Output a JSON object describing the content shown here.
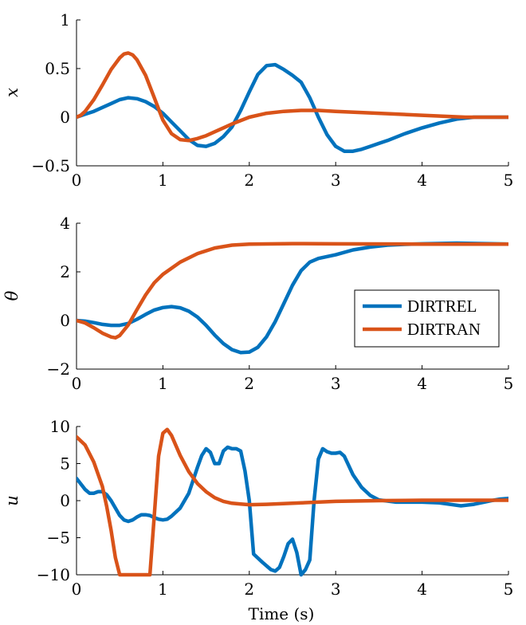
{
  "colors": {
    "DIRTREL": "#0072bd",
    "DIRTRAN": "#d95319"
  },
  "xlabel": "Time (s)",
  "chart_data": [
    {
      "type": "line",
      "ylabel": "x",
      "xlim": [
        0,
        5
      ],
      "ylim": [
        -0.5,
        1
      ],
      "xticks": [
        "0",
        "1",
        "2",
        "3",
        "4",
        "5"
      ],
      "yticks": [
        {
          "value": -0.5,
          "label": "−0.5"
        },
        {
          "value": 0,
          "label": "0"
        },
        {
          "value": 0.5,
          "label": "0.5"
        },
        {
          "value": 1,
          "label": "1"
        }
      ],
      "grid": false,
      "series": [
        {
          "name": "DIRTREL",
          "x": [
            0,
            0.1,
            0.2,
            0.3,
            0.4,
            0.5,
            0.6,
            0.7,
            0.8,
            0.9,
            1.0,
            1.1,
            1.2,
            1.3,
            1.4,
            1.5,
            1.6,
            1.7,
            1.8,
            1.9,
            2.0,
            2.1,
            2.2,
            2.3,
            2.4,
            2.5,
            2.6,
            2.7,
            2.8,
            2.9,
            3.0,
            3.1,
            3.2,
            3.3,
            3.4,
            3.5,
            3.6,
            3.8,
            4.0,
            4.2,
            4.4,
            4.6,
            4.8,
            5.0
          ],
          "y": [
            0,
            0.03,
            0.06,
            0.1,
            0.14,
            0.18,
            0.2,
            0.19,
            0.16,
            0.11,
            0.04,
            -0.05,
            -0.14,
            -0.23,
            -0.29,
            -0.3,
            -0.27,
            -0.2,
            -0.1,
            0.07,
            0.26,
            0.44,
            0.53,
            0.54,
            0.49,
            0.43,
            0.36,
            0.2,
            0.0,
            -0.18,
            -0.3,
            -0.35,
            -0.35,
            -0.33,
            -0.3,
            -0.27,
            -0.24,
            -0.17,
            -0.11,
            -0.06,
            -0.02,
            0.0,
            0.0,
            0.0
          ]
        },
        {
          "name": "DIRTRAN",
          "x": [
            0,
            0.05,
            0.1,
            0.2,
            0.3,
            0.4,
            0.5,
            0.55,
            0.6,
            0.65,
            0.7,
            0.8,
            0.9,
            1.0,
            1.1,
            1.2,
            1.3,
            1.4,
            1.5,
            1.6,
            1.7,
            1.8,
            2.0,
            2.2,
            2.4,
            2.6,
            2.8,
            3.0,
            3.5,
            4.0,
            4.5,
            5.0
          ],
          "y": [
            0,
            0.02,
            0.06,
            0.18,
            0.33,
            0.49,
            0.61,
            0.65,
            0.66,
            0.64,
            0.59,
            0.43,
            0.2,
            -0.03,
            -0.17,
            -0.23,
            -0.24,
            -0.22,
            -0.19,
            -0.15,
            -0.11,
            -0.07,
            0.0,
            0.04,
            0.06,
            0.07,
            0.07,
            0.06,
            0.04,
            0.02,
            0.0,
            0.0
          ]
        }
      ]
    },
    {
      "type": "line",
      "ylabel": "θ",
      "xlim": [
        0,
        5
      ],
      "ylim": [
        -2,
        4
      ],
      "xticks": [
        "0",
        "1",
        "2",
        "3",
        "4",
        "5"
      ],
      "yticks": [
        {
          "value": -2,
          "label": "−2"
        },
        {
          "value": 0,
          "label": "0"
        },
        {
          "value": 2,
          "label": "2"
        },
        {
          "value": 4,
          "label": "4"
        }
      ],
      "grid": false,
      "legend": {
        "placement": "lower-right",
        "entries": [
          "DIRTREL",
          "DIRTRAN"
        ]
      },
      "series": [
        {
          "name": "DIRTREL",
          "x": [
            0,
            0.1,
            0.2,
            0.3,
            0.4,
            0.5,
            0.6,
            0.7,
            0.8,
            0.9,
            1.0,
            1.1,
            1.2,
            1.3,
            1.4,
            1.5,
            1.6,
            1.7,
            1.8,
            1.9,
            2.0,
            2.1,
            2.2,
            2.3,
            2.4,
            2.5,
            2.6,
            2.7,
            2.8,
            3.0,
            3.2,
            3.4,
            3.6,
            3.8,
            4.0,
            4.4,
            5.0
          ],
          "y": [
            0,
            -0.03,
            -0.09,
            -0.16,
            -0.2,
            -0.2,
            -0.12,
            0.05,
            0.25,
            0.43,
            0.53,
            0.57,
            0.52,
            0.38,
            0.14,
            -0.2,
            -0.6,
            -0.95,
            -1.2,
            -1.32,
            -1.3,
            -1.1,
            -0.67,
            -0.05,
            0.7,
            1.45,
            2.05,
            2.4,
            2.55,
            2.7,
            2.9,
            3.02,
            3.1,
            3.13,
            3.15,
            3.18,
            3.14
          ]
        },
        {
          "name": "DIRTRAN",
          "x": [
            0,
            0.1,
            0.2,
            0.3,
            0.4,
            0.45,
            0.5,
            0.6,
            0.7,
            0.8,
            0.9,
            1.0,
            1.2,
            1.4,
            1.6,
            1.8,
            2.0,
            2.5,
            3.0,
            4.0,
            5.0
          ],
          "y": [
            0,
            -0.1,
            -0.3,
            -0.52,
            -0.68,
            -0.71,
            -0.62,
            -0.18,
            0.45,
            1.05,
            1.55,
            1.9,
            2.4,
            2.75,
            2.98,
            3.1,
            3.14,
            3.16,
            3.15,
            3.14,
            3.14
          ]
        }
      ]
    },
    {
      "type": "line",
      "ylabel": "u",
      "xlabel": "Time (s)",
      "xlim": [
        0,
        5
      ],
      "ylim": [
        -10,
        10
      ],
      "xticks": [
        "0",
        "1",
        "2",
        "3",
        "4",
        "5"
      ],
      "yticks": [
        {
          "value": -10,
          "label": "−10"
        },
        {
          "value": -5,
          "label": "−5"
        },
        {
          "value": 0,
          "label": "0"
        },
        {
          "value": 5,
          "label": "5"
        },
        {
          "value": 10,
          "label": "10"
        }
      ],
      "grid": false,
      "series": [
        {
          "name": "DIRTREL",
          "x": [
            0,
            0.1,
            0.15,
            0.2,
            0.25,
            0.3,
            0.35,
            0.4,
            0.5,
            0.55,
            0.6,
            0.65,
            0.7,
            0.75,
            0.8,
            0.85,
            0.9,
            0.95,
            1.0,
            1.05,
            1.1,
            1.2,
            1.3,
            1.4,
            1.45,
            1.5,
            1.55,
            1.6,
            1.65,
            1.7,
            1.75,
            1.8,
            1.85,
            1.9,
            1.95,
            2.0,
            2.05,
            2.15,
            2.25,
            2.3,
            2.35,
            2.4,
            2.45,
            2.5,
            2.55,
            2.6,
            2.65,
            2.7,
            2.75,
            2.8,
            2.85,
            2.9,
            2.95,
            3.0,
            3.05,
            3.1,
            3.2,
            3.3,
            3.4,
            3.5,
            3.7,
            4.0,
            4.2,
            4.45,
            4.6,
            4.8,
            4.9,
            5.0
          ],
          "y": [
            3.0,
            1.5,
            1.0,
            1.0,
            1.2,
            1.2,
            0.8,
            0.0,
            -2.0,
            -2.6,
            -2.8,
            -2.6,
            -2.2,
            -1.9,
            -1.9,
            -2.0,
            -2.3,
            -2.5,
            -2.6,
            -2.5,
            -2.1,
            -1.0,
            1.0,
            4.5,
            6.1,
            7.0,
            6.5,
            5.0,
            5.0,
            6.7,
            7.2,
            7.0,
            7.0,
            6.7,
            4.0,
            0.0,
            -7.2,
            -8.3,
            -9.3,
            -9.5,
            -9.0,
            -7.5,
            -5.8,
            -5.2,
            -7.0,
            -10.0,
            -9.3,
            -8.0,
            0.0,
            5.6,
            7.0,
            6.6,
            6.4,
            6.4,
            6.5,
            6.0,
            3.5,
            1.8,
            0.7,
            0.1,
            -0.2,
            -0.2,
            -0.3,
            -0.7,
            -0.5,
            0.0,
            0.2,
            0.3
          ]
        },
        {
          "name": "DIRTRAN",
          "x": [
            0,
            0.1,
            0.2,
            0.3,
            0.35,
            0.4,
            0.45,
            0.5,
            0.6,
            0.7,
            0.8,
            0.85,
            0.9,
            0.95,
            1.0,
            1.05,
            1.1,
            1.2,
            1.3,
            1.4,
            1.5,
            1.6,
            1.7,
            1.8,
            1.9,
            2.0,
            2.2,
            2.5,
            3.0,
            3.5,
            4.0,
            5.0
          ],
          "y": [
            8.6,
            7.5,
            5.2,
            1.9,
            -0.8,
            -4.0,
            -7.7,
            -10.0,
            -10.0,
            -10.0,
            -10.0,
            -10.0,
            -2.0,
            6.0,
            9.1,
            9.6,
            8.8,
            6.1,
            3.9,
            2.3,
            1.2,
            0.4,
            -0.1,
            -0.35,
            -0.45,
            -0.55,
            -0.5,
            -0.35,
            -0.1,
            0.0,
            0.05,
            0.05
          ]
        }
      ]
    }
  ]
}
